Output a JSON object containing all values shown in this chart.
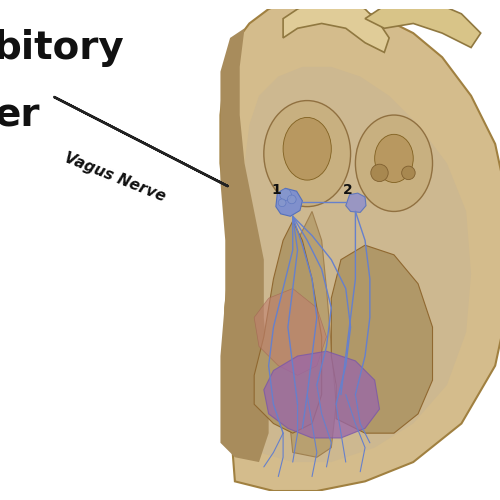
{
  "background_color": "#ffffff",
  "text_inhibitory": "bitory",
  "text_center": "er",
  "text_vagus": "Vagus Nerve",
  "label_1": "1",
  "label_2": "2",
  "text_color": "#111111",
  "arrow_color": "#ffffff",
  "arrow_edge_color": "#222222",
  "heart_outer_color": "#d4bc8c",
  "heart_outer_edge": "#a08040",
  "heart_inner_color": "#c0a870",
  "vessel_color": "#e8d4a0",
  "chamber_color": "#c8b480",
  "wall_dark": "#a89060",
  "nerve_color": "#6680cc",
  "nerve_color2": "#5570bb",
  "sa_node_color": "#8090cc",
  "av_node_color": "#9090cc",
  "purkinje_color": "#9966aa",
  "purkinje_alpha": 0.75,
  "blue_region_color": "#8899cc",
  "pink_region_color": "#cc8888",
  "figsize": [
    5.0,
    5.0
  ],
  "dpi": 100
}
